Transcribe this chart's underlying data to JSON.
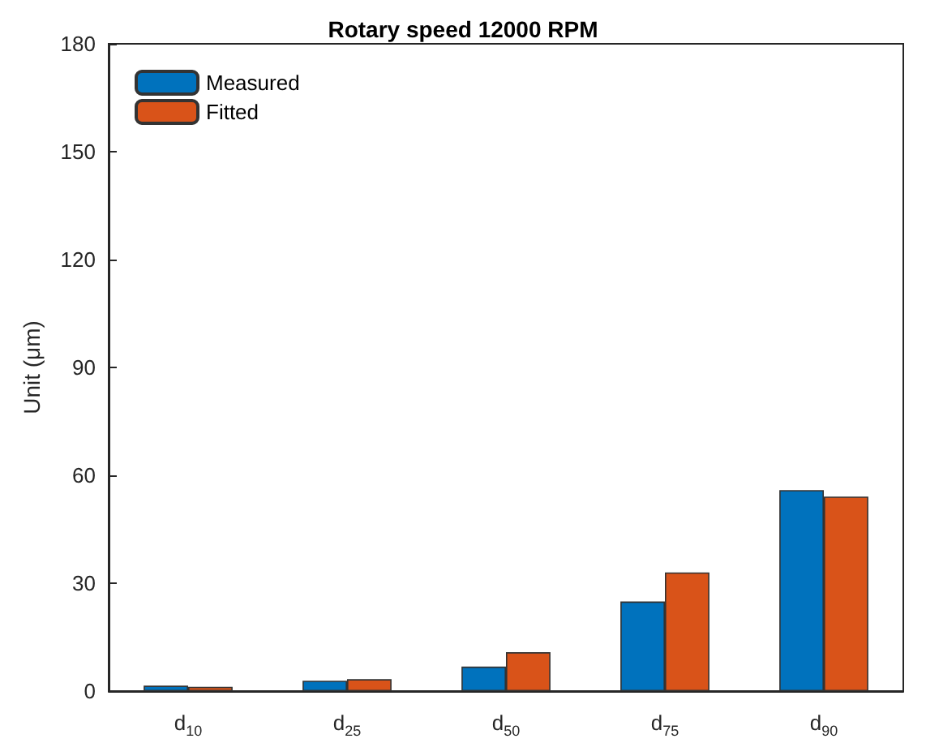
{
  "chart_data": {
    "type": "bar",
    "title": "Rotary speed 12000 RPM",
    "ylabel": "Unit (μm)",
    "categories": [
      "d$_{10}$",
      "d$_{25}$",
      "d$_{50}$",
      "d$_{75}$",
      "d$_{90}$"
    ],
    "series": [
      {
        "name": "Measured",
        "color": "#0072bd",
        "values": [
          1.5,
          2.9,
          6.8,
          24.9,
          55.9
        ]
      },
      {
        "name": "Fitted",
        "color": "#d95319",
        "values": [
          1.2,
          3.3,
          10.8,
          33,
          54.1
        ]
      }
    ],
    "ylim": [
      0,
      180
    ],
    "yticks": [
      0,
      30,
      60,
      90,
      120,
      150,
      180
    ],
    "grid": false,
    "legend": "top left"
  }
}
